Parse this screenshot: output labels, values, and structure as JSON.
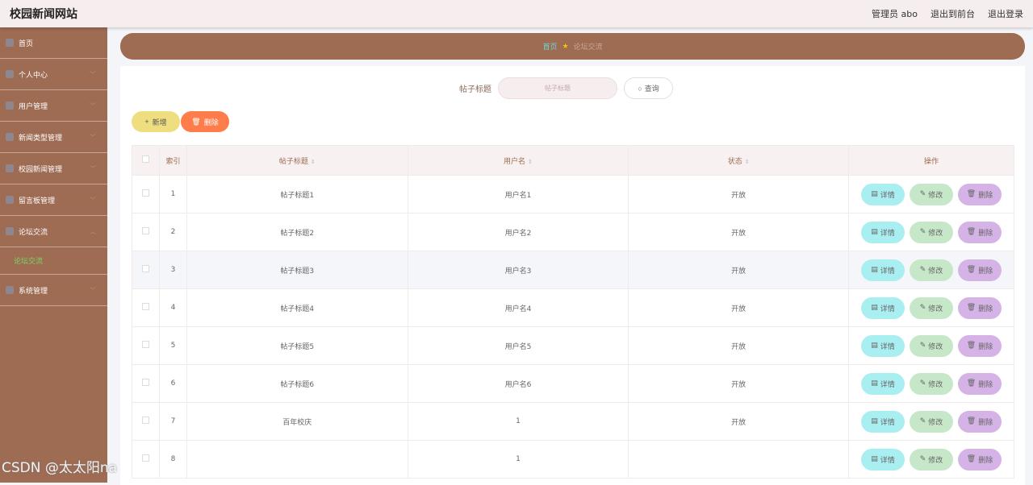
{
  "header": {
    "title": "校园新闻网站",
    "user": "管理员 abo",
    "front": "退出到前台",
    "logout": "退出登录"
  },
  "sidebar": {
    "items": [
      {
        "label": "首页",
        "icon": "home-icon",
        "chev": false
      },
      {
        "label": "个人中心",
        "icon": "user-icon",
        "chev": true
      },
      {
        "label": "用户管理",
        "icon": "clipboard-icon",
        "chev": true
      },
      {
        "label": "新闻类型管理",
        "icon": "flag-icon",
        "chev": true
      },
      {
        "label": "校园新闻管理",
        "icon": "target-icon",
        "chev": true
      },
      {
        "label": "留言板管理",
        "icon": "user-icon",
        "chev": true
      },
      {
        "label": "论坛交流",
        "icon": "briefcase-icon",
        "chev": true,
        "open": true,
        "sub": "论坛交流"
      },
      {
        "label": "系统管理",
        "icon": "chart-icon",
        "chev": true
      }
    ]
  },
  "breadcrumb": {
    "home": "首页",
    "current": "论坛交流"
  },
  "search": {
    "label": "帖子标题",
    "placeholder": "帖子标题",
    "button": "查询"
  },
  "toolbar": {
    "add": "新增",
    "delete": "删除"
  },
  "table": {
    "headers": [
      "索引",
      "帖子标题",
      "用户名",
      "状态",
      "操作"
    ],
    "rows": [
      [
        "1",
        "帖子标题1",
        "用户名1",
        "开放"
      ],
      [
        "2",
        "帖子标题2",
        "用户名2",
        "开放"
      ],
      [
        "3",
        "帖子标题3",
        "用户名3",
        "开放"
      ],
      [
        "4",
        "帖子标题4",
        "用户名4",
        "开放"
      ],
      [
        "5",
        "帖子标题5",
        "用户名5",
        "开放"
      ],
      [
        "6",
        "帖子标题6",
        "用户名6",
        "开放"
      ],
      [
        "7",
        "百年校庆",
        "1",
        "开放"
      ],
      [
        "8",
        "",
        "1",
        ""
      ]
    ],
    "actions": [
      "详情",
      "修改",
      "删除"
    ]
  },
  "watermark": "CSDN @太太阳na",
  "colors": {
    "sidebar": "#9e6b53",
    "active": "#7bd56a",
    "add": "#efde80",
    "delete": "#ff7c4b"
  }
}
